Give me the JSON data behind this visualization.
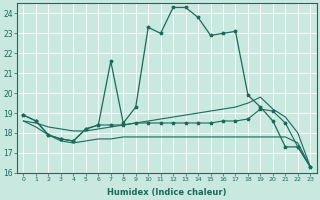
{
  "xlabel": "Humidex (Indice chaleur)",
  "bg_color": "#c8e8e0",
  "line_color": "#1a6b5a",
  "grid_color": "#ffffff",
  "xlim": [
    -0.5,
    23.5
  ],
  "ylim": [
    16,
    24.5
  ],
  "yticks": [
    16,
    17,
    18,
    19,
    20,
    21,
    22,
    23,
    24
  ],
  "xticks": [
    0,
    1,
    2,
    3,
    4,
    5,
    6,
    7,
    8,
    9,
    10,
    11,
    12,
    13,
    14,
    15,
    16,
    17,
    18,
    19,
    20,
    21,
    22,
    23
  ],
  "curve1_x": [
    0,
    1,
    2,
    3,
    4,
    5,
    6,
    7,
    8,
    9,
    10,
    11,
    12,
    13,
    14,
    15,
    16,
    17,
    18,
    19,
    20,
    21,
    22,
    23
  ],
  "curve1_y": [
    18.9,
    18.6,
    17.9,
    17.7,
    17.6,
    18.2,
    18.4,
    21.6,
    18.5,
    19.3,
    23.3,
    23.0,
    24.3,
    24.3,
    23.8,
    22.9,
    23.0,
    23.1,
    19.9,
    19.3,
    18.6,
    17.3,
    17.3,
    16.3
  ],
  "curve2_x": [
    0,
    1,
    2,
    3,
    4,
    5,
    6,
    7,
    8,
    9,
    10,
    11,
    12,
    13,
    14,
    15,
    16,
    17,
    18,
    19,
    20,
    21,
    22,
    23
  ],
  "curve2_y": [
    18.9,
    18.6,
    17.9,
    17.7,
    17.6,
    18.2,
    18.4,
    18.4,
    18.4,
    18.5,
    18.5,
    18.5,
    18.5,
    18.5,
    18.5,
    18.5,
    18.6,
    18.6,
    18.7,
    19.2,
    19.1,
    18.5,
    17.3,
    16.3
  ],
  "curve3_x": [
    0,
    1,
    2,
    3,
    4,
    5,
    6,
    7,
    8,
    9,
    10,
    11,
    12,
    13,
    14,
    15,
    16,
    17,
    18,
    19,
    20,
    21,
    22,
    23
  ],
  "curve3_y": [
    18.6,
    18.5,
    18.3,
    18.2,
    18.1,
    18.1,
    18.2,
    18.3,
    18.4,
    18.5,
    18.6,
    18.7,
    18.8,
    18.9,
    19.0,
    19.1,
    19.2,
    19.3,
    19.5,
    19.8,
    19.2,
    18.8,
    18.0,
    16.3
  ],
  "curve4_x": [
    0,
    1,
    2,
    3,
    4,
    5,
    6,
    7,
    8,
    9,
    10,
    11,
    12,
    13,
    14,
    15,
    16,
    17,
    18,
    19,
    20,
    21,
    22,
    23
  ],
  "curve4_y": [
    18.6,
    18.3,
    17.9,
    17.6,
    17.5,
    17.6,
    17.7,
    17.7,
    17.8,
    17.8,
    17.8,
    17.8,
    17.8,
    17.8,
    17.8,
    17.8,
    17.8,
    17.8,
    17.8,
    17.8,
    17.8,
    17.8,
    17.5,
    16.3
  ]
}
